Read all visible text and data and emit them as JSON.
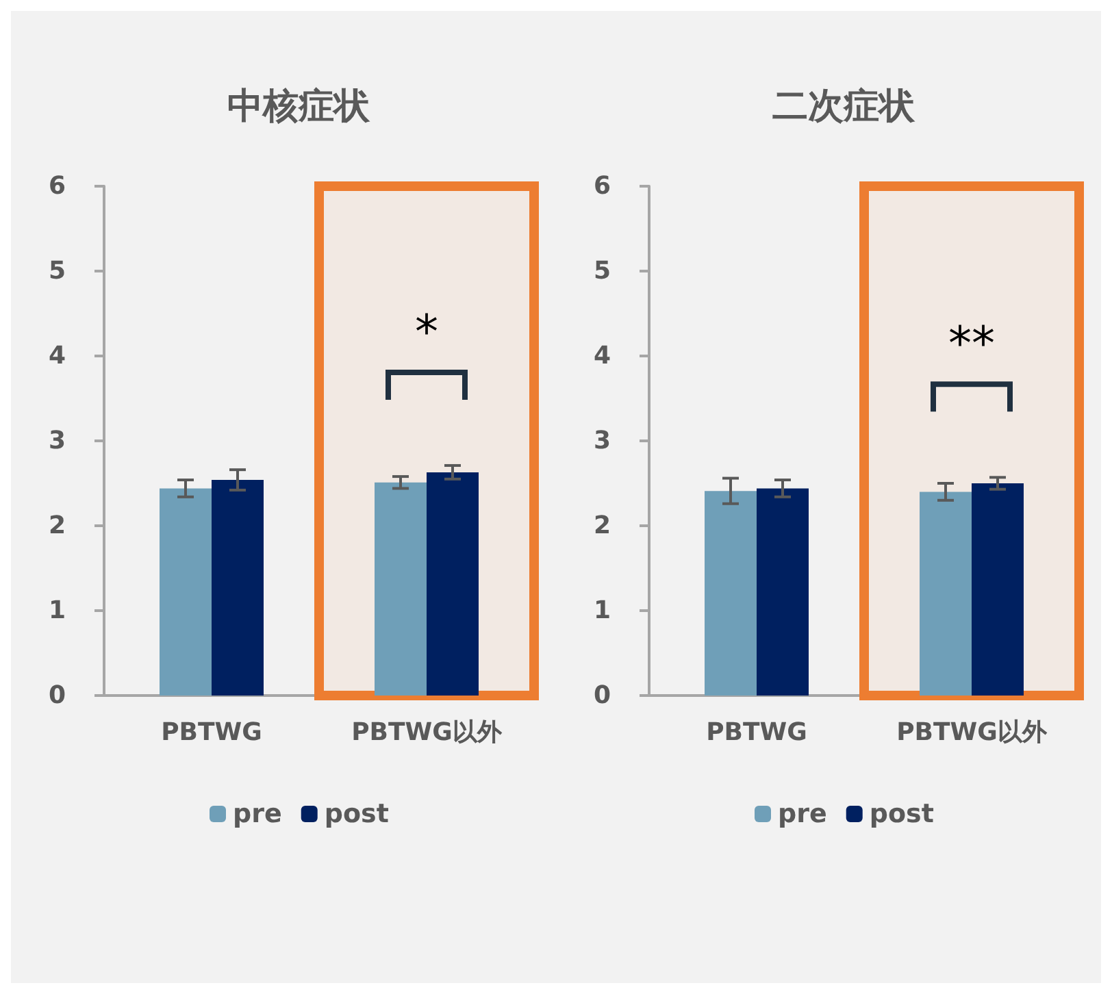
{
  "chart_data": [
    {
      "type": "bar",
      "title": "中核症状",
      "categories": [
        "PBTWG",
        "PBTWG以外"
      ],
      "series": [
        {
          "name": "pre",
          "color": "#6f9fb8",
          "values": [
            2.44,
            2.51
          ],
          "errors": [
            0.1,
            0.07
          ]
        },
        {
          "name": "post",
          "color": "#002060",
          "values": [
            2.54,
            2.63
          ],
          "errors": [
            0.12,
            0.08
          ]
        }
      ],
      "ylim": [
        0,
        6
      ],
      "yticks": [
        0,
        1,
        2,
        3,
        4,
        5,
        6
      ],
      "grid": false,
      "legend": "bottom",
      "annotations": [
        "*"
      ],
      "bands": [
        {
          "axis": "x",
          "from": "PBTWG以外",
          "to": "PBTWG以外",
          "color": "#ed7d31"
        }
      ]
    },
    {
      "type": "bar",
      "title": "二次症状",
      "categories": [
        "PBTWG",
        "PBTWG以外"
      ],
      "series": [
        {
          "name": "pre",
          "color": "#6f9fb8",
          "values": [
            2.41,
            2.4
          ],
          "errors": [
            0.15,
            0.1
          ]
        },
        {
          "name": "post",
          "color": "#002060",
          "values": [
            2.44,
            2.5
          ],
          "errors": [
            0.1,
            0.07
          ]
        }
      ],
      "ylim": [
        0,
        6
      ],
      "yticks": [
        0,
        1,
        2,
        3,
        4,
        5,
        6
      ],
      "grid": false,
      "legend": "bottom",
      "annotations": [
        "**"
      ],
      "bands": [
        {
          "axis": "x",
          "from": "PBTWG以外",
          "to": "PBTWG以外",
          "color": "#ed7d31"
        }
      ]
    }
  ]
}
